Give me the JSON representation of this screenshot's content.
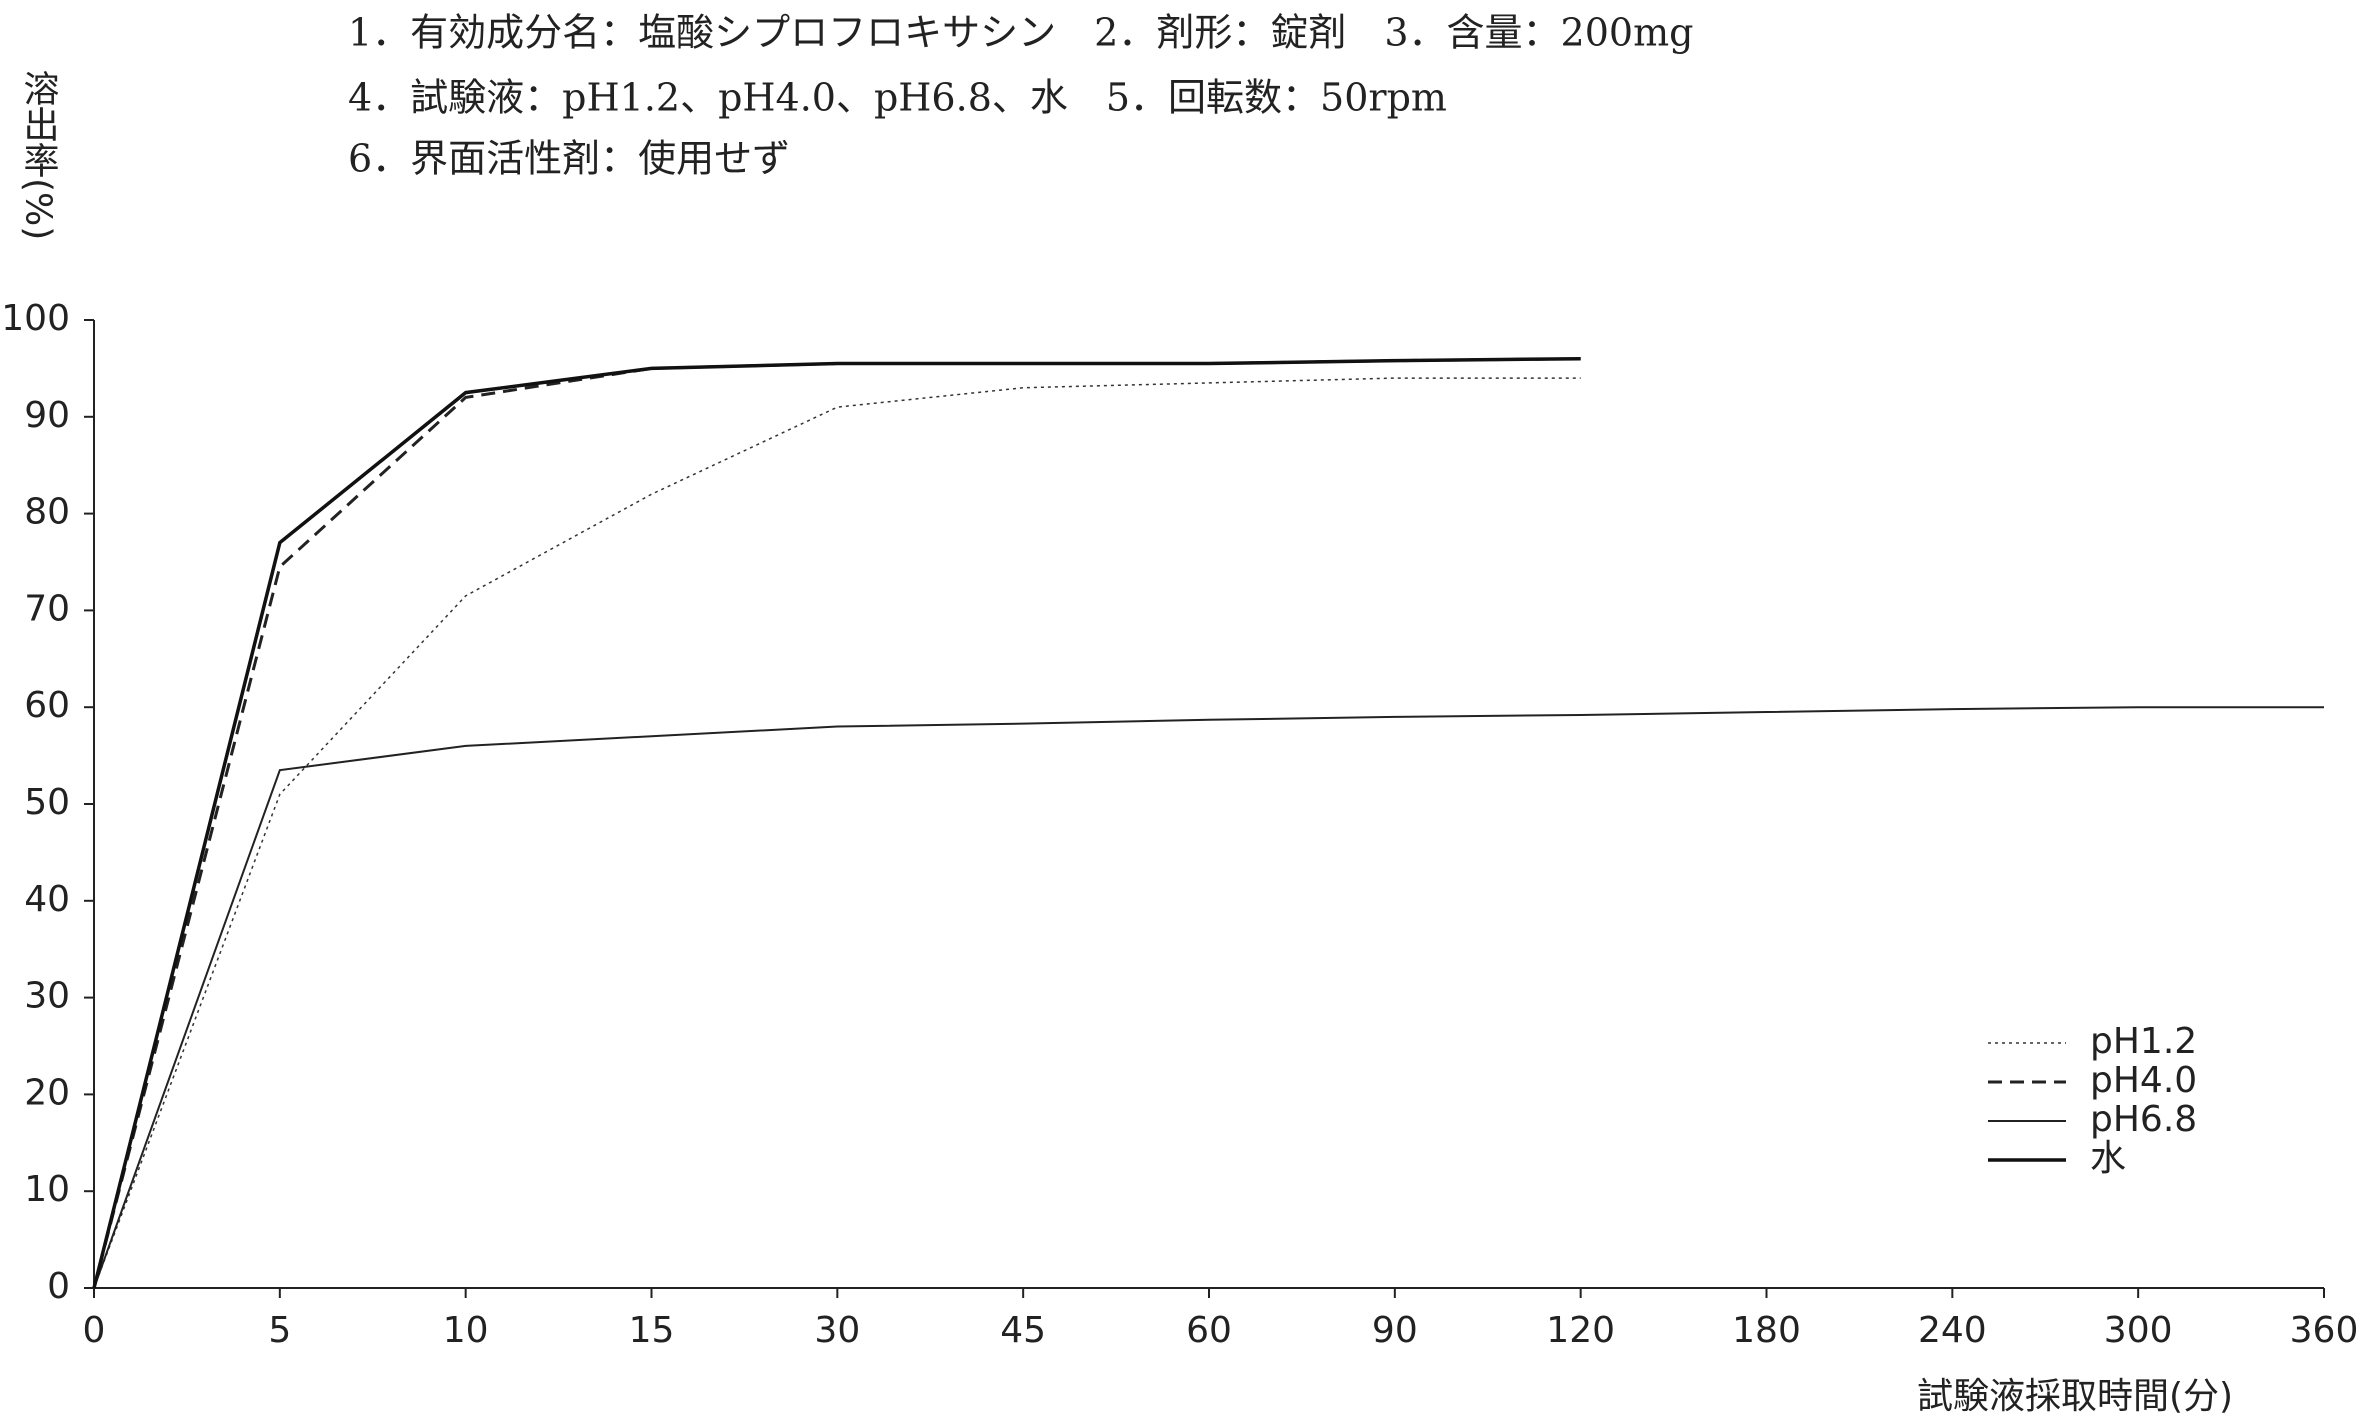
{
  "chart_data": {
    "type": "line",
    "annotations": [
      "1．有効成分名：塩酸シプロフロキサシン　2．剤形：錠剤　3．含量：200mg",
      "4．試験液：pH1.2、pH4.0、pH6.8、水　5．回転数：50rpm",
      "6．界面活性剤：使用せず"
    ],
    "y_label": "溶出率(%)",
    "x_label": "試験液採取時間(分)",
    "categories": [
      "0",
      "5",
      "10",
      "15",
      "30",
      "45",
      "60",
      "90",
      "120",
      "180",
      "240",
      "300",
      "360"
    ],
    "series": [
      {
        "name": "pH1.2",
        "color": "#333333",
        "style": "dotted",
        "width": 1.5,
        "values": [
          0,
          51,
          71.5,
          82,
          91,
          93,
          93.5,
          94,
          94,
          null,
          null,
          null,
          null
        ]
      },
      {
        "name": "pH4.0",
        "color": "#222222",
        "style": "dashed",
        "width": 3,
        "values": [
          0,
          74.5,
          92,
          95,
          95.5,
          95.5,
          95.5,
          95.8,
          96,
          null,
          null,
          null,
          null
        ]
      },
      {
        "name": "pH6.8",
        "color": "#222222",
        "style": "solid",
        "width": 2,
        "values": [
          0,
          53.5,
          56,
          57,
          58,
          58.3,
          58.7,
          59,
          59.2,
          59.5,
          59.8,
          60,
          60
        ]
      },
      {
        "name": "水",
        "color": "#111111",
        "style": "solid",
        "width": 3.5,
        "values": [
          0,
          77,
          92.5,
          95,
          95.5,
          95.5,
          95.5,
          95.8,
          96,
          null,
          null,
          null,
          null
        ]
      }
    ],
    "ylim": [
      0,
      100
    ],
    "yticks": [
      0,
      10,
      20,
      30,
      40,
      50,
      60,
      70,
      80,
      90,
      100
    ],
    "legend": "lower right"
  }
}
